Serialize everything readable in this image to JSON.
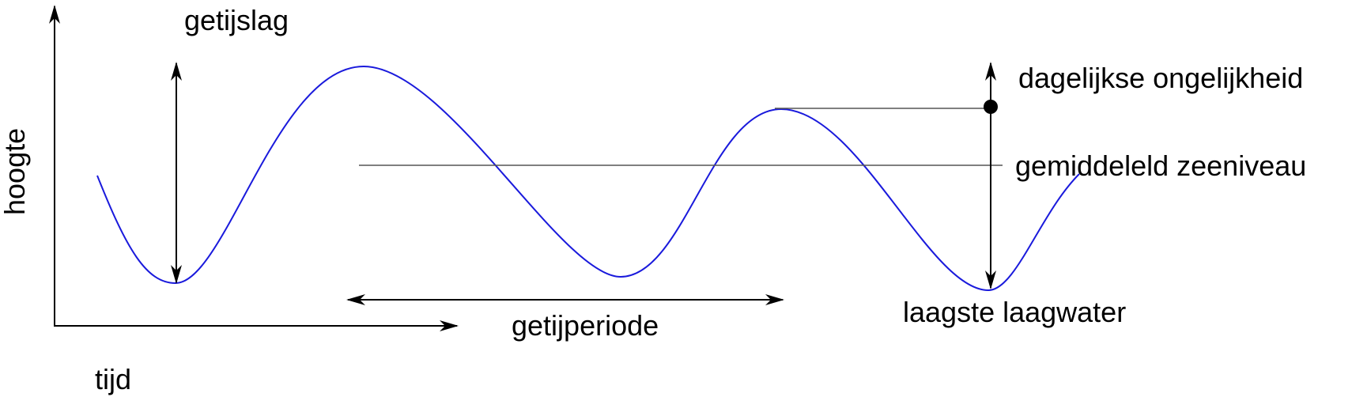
{
  "labels": {
    "y_axis": "hoogte",
    "x_axis": "tijd",
    "tidal_range": "getijslag",
    "diurnal_inequality": "dagelijkse ongelijkheid",
    "mean_sea_level": "gemiddeleld zeeniveau",
    "tidal_period": "getijperiode",
    "lowest_low_water": "laagste laagwater"
  },
  "colors": {
    "curve": "#1a1adc",
    "reference_line": "#555555",
    "annotation": "#000000"
  }
}
